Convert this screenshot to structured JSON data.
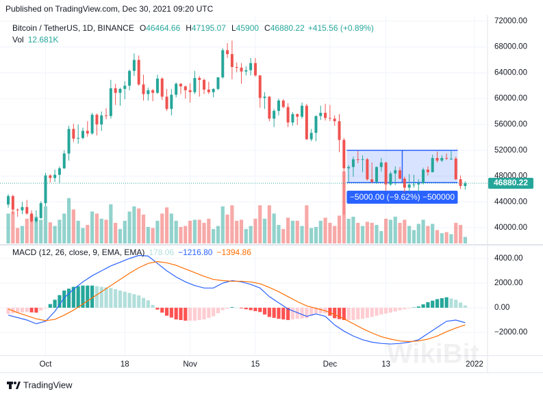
{
  "chart_data": [
    {
      "type": "candlestick",
      "source": "Published on TradingView.com, Dec 30, 2021 09:20 UTC",
      "title": "Bitcoin / TetherUS, 1D, BINANCE",
      "ohlc_letters": [
        "O",
        "H",
        "L",
        "C"
      ],
      "change_label": "+415.56 (+0.89%)",
      "up_color": "#26a69a",
      "down_color": "#ef5350",
      "xlim": [
        -0.3,
        102.5
      ],
      "xticks": [
        {
          "value": 8,
          "label": "Oct"
        },
        {
          "value": 25,
          "label": "18"
        },
        {
          "value": 39,
          "label": "Nov"
        },
        {
          "value": 53,
          "label": "15"
        },
        {
          "value": 69,
          "label": "Dec"
        },
        {
          "value": 81,
          "label": "13"
        },
        {
          "value": 100,
          "label": "2022"
        }
      ],
      "ylim": [
        37560,
        72950
      ],
      "yticks": [
        {
          "value": 72000,
          "label": "72000.00"
        },
        {
          "value": 68000,
          "label": "68000.00"
        },
        {
          "value": 64000,
          "label": "64000.00"
        },
        {
          "value": 60000,
          "label": "60000.00"
        },
        {
          "value": 56000,
          "label": "56000.00"
        },
        {
          "value": 52000,
          "label": "52000.00"
        },
        {
          "value": 48000,
          "label": "48000.00"
        },
        {
          "value": 44000,
          "label": "44000.00"
        },
        {
          "value": 40000,
          "label": "40000.00"
        }
      ],
      "grid": true,
      "open": [
        43600,
        44900,
        42800,
        42700,
        43200,
        42200,
        41000,
        41500,
        43800,
        48100,
        47700,
        48200,
        49200,
        51500,
        55300,
        53800,
        53900,
        55000,
        54600,
        57500,
        56000,
        57400,
        57300,
        61600,
        60900,
        61500,
        62000,
        64300,
        66000,
        62200,
        60700,
        61300,
        60900,
        63100,
        60300,
        58400,
        60600,
        62300,
        61900,
        61300,
        61000,
        63200,
        62900,
        61400,
        61000,
        61500,
        63300,
        67500,
        66900,
        64900,
        64800,
        64200,
        64400,
        65500,
        63600,
        60100,
        60300,
        56900,
        58100,
        59700,
        58700,
        56300,
        57600,
        57200,
        58900,
        53700,
        54700,
        57300,
        57800,
        57000,
        56900,
        56500,
        53600,
        49200,
        49400,
        50600,
        50500,
        50600,
        47500,
        47100,
        49400,
        50100,
        46700,
        48400,
        48900,
        47600,
        46200,
        46700,
        46700,
        46900,
        49000,
        48600,
        50800,
        50400,
        50800,
        50700,
        50700,
        47500,
        46464.66
      ],
      "high": [
        45200,
        45100,
        43000,
        44000,
        44300,
        42700,
        42700,
        44100,
        48500,
        48300,
        49000,
        49500,
        52000,
        55800,
        56100,
        56000,
        55500,
        56500,
        57800,
        57700,
        58000,
        58500,
        62900,
        62300,
        61700,
        62700,
        64500,
        67000,
        66700,
        63700,
        61700,
        61500,
        63700,
        63300,
        61500,
        61500,
        62500,
        62400,
        62000,
        62400,
        64300,
        63500,
        63100,
        62600,
        61600,
        63300,
        67800,
        68600,
        69000,
        65600,
        65500,
        65000,
        66300,
        66300,
        63600,
        61000,
        60400,
        58400,
        60000,
        59900,
        59300,
        57900,
        57700,
        59400,
        59200,
        55300,
        57400,
        58900,
        59200,
        59000,
        57400,
        57600,
        53900,
        49700,
        51000,
        51900,
        51200,
        50800,
        50100,
        49500,
        50800,
        50200,
        48700,
        49500,
        49400,
        47900,
        48300,
        48200,
        47500,
        49300,
        49500,
        51300,
        51800,
        51200,
        51500,
        52000,
        51000,
        48100,
        47195.07
      ],
      "low": [
        43100,
        42100,
        41700,
        42100,
        42000,
        40800,
        40800,
        41400,
        43300,
        47000,
        47100,
        46900,
        49100,
        50400,
        53300,
        53000,
        53700,
        54100,
        54400,
        54300,
        55000,
        56800,
        56900,
        59000,
        58900,
        59900,
        61300,
        63500,
        62000,
        59700,
        59700,
        59600,
        60700,
        59800,
        58100,
        57400,
        60200,
        60700,
        60000,
        59400,
        60700,
        60300,
        60700,
        60700,
        60200,
        61300,
        63100,
        66300,
        63000,
        64100,
        62300,
        63600,
        63600,
        63400,
        58600,
        58400,
        56500,
        55600,
        57400,
        58500,
        55600,
        55800,
        55900,
        56900,
        53600,
        53400,
        53400,
        56700,
        56600,
        56500,
        55800,
        51700,
        42000,
        47100,
        47900,
        50000,
        48600,
        47300,
        46900,
        46800,
        48700,
        45700,
        46500,
        46600,
        47500,
        45500,
        45600,
        46200,
        45600,
        46700,
        48100,
        48600,
        50100,
        50200,
        50500,
        50500,
        47400,
        46000,
        45900
      ],
      "close": [
        44900,
        42800,
        42700,
        43200,
        42200,
        41000,
        41500,
        43800,
        48100,
        47700,
        48200,
        49200,
        51500,
        55300,
        53800,
        53900,
        55000,
        54600,
        57500,
        56000,
        57400,
        57300,
        61600,
        60900,
        61500,
        62000,
        64300,
        66000,
        62200,
        60700,
        61300,
        60900,
        63100,
        60300,
        58400,
        60600,
        62300,
        61900,
        61300,
        61000,
        63200,
        62900,
        61400,
        61000,
        61500,
        63300,
        67500,
        66900,
        64900,
        64800,
        64200,
        64400,
        65500,
        63600,
        60100,
        60300,
        56900,
        58100,
        59700,
        58700,
        56300,
        57600,
        57200,
        58900,
        53700,
        54700,
        57300,
        57800,
        57000,
        56900,
        56500,
        53600,
        49200,
        49400,
        50600,
        50500,
        50600,
        47500,
        47100,
        49400,
        50100,
        46700,
        48400,
        48900,
        47600,
        46200,
        46700,
        46700,
        46900,
        49000,
        48600,
        50800,
        50400,
        50800,
        50700,
        50700,
        47500,
        46464.66,
        46880.22
      ],
      "volume": {
        "name": "Vol",
        "last_label": "12.681K",
        "vlim": [
          0,
          150000
        ],
        "up_color": "rgba(38,166,154,0.5)",
        "down_color": "rgba(239,83,80,0.5)",
        "values": [
          58000,
          62000,
          30000,
          34000,
          48000,
          56000,
          52000,
          46000,
          72000,
          41000,
          34000,
          46000,
          58000,
          88000,
          66000,
          44000,
          30000,
          36000,
          62000,
          58000,
          48000,
          46000,
          76000,
          40000,
          28000,
          44000,
          62000,
          72000,
          68000,
          56000,
          32000,
          30000,
          44000,
          58000,
          70000,
          58000,
          44000,
          32000,
          34000,
          44000,
          46000,
          46000,
          40000,
          48000,
          28000,
          34000,
          72000,
          56000,
          74000,
          44000,
          46000,
          28000,
          34000,
          48000,
          74000,
          48000,
          74000,
          58000,
          36000,
          28000,
          50000,
          44000,
          44000,
          34000,
          74000,
          30000,
          32000,
          44000,
          50000,
          40000,
          34000,
          54000,
          140000,
          48000,
          52000,
          40000,
          34000,
          42000,
          40000,
          36000,
          24000,
          48000,
          46000,
          52000,
          40000,
          46000,
          34000,
          26000,
          38000,
          46000,
          34000,
          38000,
          26000,
          20000,
          22000,
          18000,
          40000,
          36000,
          12681
        ]
      },
      "range_tool": {
        "x": [
          72.6,
          96.4
        ],
        "top": 52000,
        "bottom": 47000,
        "label": "−5000.00 (−9.62%) −500000",
        "color": "#2962ff"
      }
    },
    {
      "type": "macd",
      "title": "MACD (12, 26, close, 9, EMA, EMA)",
      "ylim": [
        -3890,
        5000
      ],
      "yticks": [
        {
          "value": 4000,
          "label": "4000.00"
        },
        {
          "value": 2000,
          "label": "2000.00"
        },
        {
          "value": 0,
          "label": "0.00"
        },
        {
          "value": -2000,
          "label": "−2000.00"
        }
      ],
      "histogram": {
        "colors": [
          "#26a69a",
          "#b2dfdb",
          "#ff5252",
          "#ffcdd2"
        ],
        "values": [
          -500,
          -450,
          -400,
          -375,
          -350,
          -375,
          -400,
          -225,
          -50,
          300,
          650,
          1025,
          1400,
          1550,
          1700,
          1750,
          1800,
          1800,
          1800,
          1750,
          1700,
          1650,
          1600,
          1500,
          1400,
          1300,
          1200,
          1100,
          1000,
          800,
          600,
          225,
          -150,
          -400,
          -650,
          -800,
          -950,
          -1000,
          -1050,
          -1050,
          -1050,
          -1000,
          -950,
          -825,
          -700,
          -450,
          -200,
          -75,
          50,
          0,
          -50,
          -125,
          -200,
          -275,
          -350,
          -550,
          -750,
          -825,
          -900,
          -950,
          -1000,
          -950,
          -900,
          -875,
          -850,
          -650,
          -450,
          -450,
          -450,
          -650,
          -850,
          -925,
          -1000,
          -1000,
          -1000,
          -950,
          -900,
          -825,
          -750,
          -650,
          -550,
          -475,
          -400,
          -300,
          -200,
          -125,
          -50,
          25,
          100,
          275,
          450,
          575,
          700,
          775,
          850,
          750,
          650,
          420,
          178.06
        ]
      },
      "series": [
        {
          "color": "#2962ff",
          "last_label": "−1216.80",
          "x": [
            0,
            2,
            4,
            6,
            8,
            10,
            12,
            14,
            16,
            18,
            20,
            22,
            24,
            26,
            28,
            30,
            32,
            34,
            36,
            38,
            40,
            42,
            44,
            46,
            48,
            50,
            52,
            54,
            56,
            58,
            60,
            62,
            64,
            66,
            68,
            70,
            72,
            74,
            76,
            78,
            80,
            82,
            84,
            86,
            88,
            90,
            92,
            94,
            96,
            98
          ],
          "values": [
            -600,
            -800,
            -1000,
            -1300,
            -1100,
            -300,
            800,
            1500,
            2100,
            2600,
            3000,
            3400,
            3700,
            4000,
            4250,
            4200,
            3600,
            3000,
            2500,
            2100,
            1800,
            1600,
            1600,
            2000,
            2200,
            2100,
            1900,
            1600,
            900,
            400,
            -100,
            -400,
            -700,
            -500,
            -700,
            -1400,
            -1900,
            -2300,
            -2600,
            -2800,
            -2900,
            -2950,
            -2900,
            -2800,
            -2600,
            -2100,
            -1600,
            -1100,
            -1000,
            -1216.8
          ]
        },
        {
          "color": "#ff6d00",
          "last_label": "−1394.86",
          "x": [
            0,
            2,
            4,
            6,
            8,
            10,
            12,
            14,
            16,
            18,
            20,
            22,
            24,
            26,
            28,
            30,
            32,
            34,
            36,
            38,
            40,
            42,
            44,
            46,
            48,
            50,
            52,
            54,
            56,
            58,
            60,
            62,
            64,
            66,
            68,
            70,
            72,
            74,
            76,
            78,
            80,
            82,
            84,
            86,
            88,
            90,
            92,
            94,
            96,
            98
          ],
          "values": [
            -100,
            -400,
            -650,
            -900,
            -1050,
            -950,
            -600,
            -200,
            300,
            800,
            1300,
            1800,
            2300,
            2800,
            3250,
            3600,
            3750,
            3650,
            3450,
            3150,
            2850,
            2550,
            2300,
            2200,
            2150,
            2150,
            2100,
            1950,
            1650,
            1300,
            900,
            500,
            150,
            -50,
            -250,
            -550,
            -900,
            -1300,
            -1700,
            -2050,
            -2350,
            -2550,
            -2700,
            -2750,
            -2700,
            -2550,
            -2300,
            -1950,
            -1650,
            -1394.86
          ]
        }
      ]
    }
  ],
  "footer": {
    "brand": "TradingView"
  },
  "watermark": "WikiBit"
}
